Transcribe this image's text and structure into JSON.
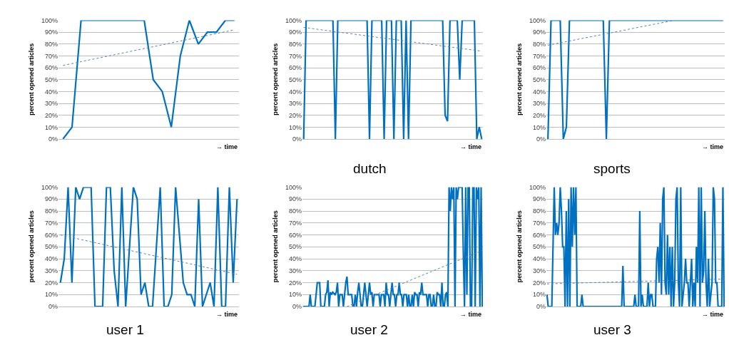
{
  "chart_data": [
    {
      "type": "line",
      "ylabel": "percent opened articles",
      "xlabel": "→ time",
      "ylim": [
        0,
        100
      ],
      "yticks": [
        {
          "value": 0,
          "label": "0%"
        },
        {
          "value": 10,
          "label": "10%"
        },
        {
          "value": 20,
          "label": "20%"
        },
        {
          "value": 30,
          "label": "30%"
        },
        {
          "value": 40,
          "label": "40%"
        },
        {
          "value": 50,
          "label": "50%"
        },
        {
          "value": 60,
          "label": "60%"
        },
        {
          "value": 70,
          "label": "70%"
        },
        {
          "value": 80,
          "label": "80%"
        },
        {
          "value": 90,
          "label": "90%"
        },
        {
          "value": 100,
          "label": "100%"
        }
      ],
      "grid": "y",
      "tick_labels": "y",
      "marker": "none",
      "line_style": "solid",
      "categories": [
        null,
        null,
        null,
        null,
        null,
        null,
        null,
        null,
        null,
        null,
        null,
        null,
        null,
        null,
        null,
        null,
        null,
        null,
        null,
        null
      ],
      "series": [
        {
          "color": "#0070c0",
          "values": [
            0,
            10,
            100,
            100,
            100,
            100,
            100,
            100,
            100,
            100,
            50,
            40,
            10,
            70,
            100,
            80,
            90,
            90,
            100,
            100
          ]
        },
        {
          "type": "line",
          "line_style": "dotted",
          "color": "#5b7fb5",
          "values": [
            62,
            null,
            null,
            null,
            null,
            null,
            null,
            null,
            null,
            null,
            null,
            null,
            null,
            null,
            null,
            null,
            null,
            null,
            null,
            92
          ]
        }
      ]
    },
    {
      "type": "line",
      "title": "dutch",
      "ylabel": "percent opened articles",
      "xlabel": "→ time",
      "ylim": [
        0,
        100
      ],
      "yticks": [
        {
          "value": 0,
          "label": "0%"
        },
        {
          "value": 10,
          "label": "10%"
        },
        {
          "value": 20,
          "label": "20%"
        },
        {
          "value": 30,
          "label": "30%"
        },
        {
          "value": 40,
          "label": "40%"
        },
        {
          "value": 50,
          "label": "50%"
        },
        {
          "value": 60,
          "label": "60%"
        },
        {
          "value": 70,
          "label": "70%"
        },
        {
          "value": 80,
          "label": "80%"
        },
        {
          "value": 90,
          "label": "90%"
        },
        {
          "value": 100,
          "label": "100%"
        }
      ],
      "grid": "y",
      "tick_labels": "y",
      "marker": "none",
      "line_style": "solid",
      "categories": [
        null,
        null,
        null,
        null,
        null,
        null,
        null,
        null,
        null,
        null,
        null,
        null,
        null,
        null,
        null,
        null,
        null,
        null,
        null,
        null,
        null,
        null,
        null,
        null,
        null,
        null,
        null,
        null,
        null,
        null,
        null,
        null,
        null,
        null,
        null,
        null,
        null,
        null,
        null,
        null,
        null,
        null,
        null,
        null,
        null,
        null,
        null,
        null,
        null,
        null,
        null,
        null,
        null,
        null,
        null,
        null,
        null,
        null,
        null,
        null,
        null,
        null,
        null,
        null,
        null,
        null,
        null,
        null,
        null,
        null,
        null,
        null,
        null,
        null
      ],
      "series": [
        {
          "color": "#0070c0",
          "values": [
            0,
            100,
            100,
            100,
            100,
            100,
            100,
            100,
            100,
            100,
            100,
            100,
            100,
            0,
            100,
            100,
            100,
            100,
            100,
            100,
            100,
            100,
            100,
            100,
            100,
            100,
            100,
            0,
            100,
            100,
            100,
            100,
            100,
            0,
            100,
            100,
            100,
            0,
            100,
            100,
            100,
            0,
            100,
            0,
            100,
            100,
            100,
            100,
            100,
            100,
            100,
            100,
            100,
            100,
            100,
            100,
            100,
            100,
            20,
            15,
            100,
            100,
            100,
            100,
            50,
            100,
            100,
            100,
            100,
            100,
            100,
            0,
            10,
            0
          ]
        },
        {
          "type": "line",
          "line_style": "dotted",
          "color": "#5b7fb5",
          "values": [
            94,
            null,
            null,
            null,
            null,
            null,
            null,
            null,
            null,
            null,
            null,
            null,
            null,
            null,
            null,
            null,
            null,
            null,
            null,
            null,
            null,
            null,
            null,
            null,
            null,
            null,
            null,
            null,
            null,
            null,
            null,
            null,
            null,
            null,
            null,
            null,
            null,
            null,
            null,
            null,
            null,
            null,
            null,
            null,
            null,
            null,
            null,
            null,
            null,
            null,
            null,
            null,
            null,
            null,
            null,
            null,
            null,
            null,
            null,
            null,
            null,
            null,
            null,
            null,
            null,
            null,
            null,
            null,
            null,
            null,
            null,
            null,
            null,
            74
          ]
        }
      ]
    },
    {
      "type": "line",
      "title": "sports",
      "ylabel": "percent opened articles",
      "xlabel": "→ time",
      "ylim": [
        0,
        100
      ],
      "yticks": [
        {
          "value": 0,
          "label": "0%"
        },
        {
          "value": 10,
          "label": "10%"
        },
        {
          "value": 20,
          "label": "20%"
        },
        {
          "value": 30,
          "label": "30%"
        },
        {
          "value": 40,
          "label": "40%"
        },
        {
          "value": 50,
          "label": "50%"
        },
        {
          "value": 60,
          "label": "60%"
        },
        {
          "value": 70,
          "label": "70%"
        },
        {
          "value": 80,
          "label": "80%"
        },
        {
          "value": 90,
          "label": "90%"
        },
        {
          "value": 100,
          "label": "100%"
        }
      ],
      "grid": "y",
      "tick_labels": "y",
      "marker": "none",
      "line_style": "solid",
      "categories": [
        null,
        null,
        null,
        null,
        null,
        null,
        null,
        null,
        null,
        null,
        null,
        null,
        null,
        null,
        null,
        null,
        null,
        null,
        null,
        null,
        null,
        null,
        null,
        null,
        null,
        null,
        null,
        null,
        null,
        null,
        null,
        null,
        null,
        null,
        null,
        null,
        null,
        null,
        null,
        null,
        null,
        null,
        null,
        null,
        null,
        null,
        null,
        null,
        null,
        null,
        null,
        null,
        null,
        null,
        null,
        null,
        null,
        null
      ],
      "series": [
        {
          "color": "#0070c0",
          "values": [
            0,
            100,
            100,
            100,
            100,
            0,
            10,
            100,
            100,
            100,
            100,
            100,
            100,
            100,
            100,
            100,
            100,
            100,
            100,
            0,
            100,
            100,
            100,
            100,
            100,
            100,
            100,
            100,
            100,
            100,
            100,
            100,
            100,
            100,
            100,
            100,
            100,
            100,
            100,
            100,
            100,
            100,
            100,
            100,
            100,
            100,
            100,
            100,
            100,
            100,
            100,
            100,
            100,
            100,
            100,
            100,
            100,
            100
          ]
        },
        {
          "type": "line",
          "line_style": "dotted",
          "color": "#5b7fb5",
          "values": [
            79,
            null,
            null,
            null,
            null,
            null,
            null,
            null,
            null,
            null,
            null,
            null,
            null,
            null,
            null,
            null,
            null,
            null,
            null,
            null,
            null,
            null,
            null,
            null,
            null,
            null,
            null,
            null,
            null,
            null,
            null,
            null,
            null,
            null,
            null,
            null,
            null,
            null,
            null,
            null,
            null,
            100,
            null,
            null,
            null,
            null,
            null,
            null,
            null,
            null,
            null,
            null,
            null,
            null,
            null,
            null,
            null,
            null
          ]
        }
      ]
    },
    {
      "type": "line",
      "title": "user 1",
      "ylabel": "percent opened articles",
      "xlabel": "→ time",
      "ylim": [
        0,
        100
      ],
      "yticks": [
        {
          "value": 0,
          "label": "0%"
        },
        {
          "value": 10,
          "label": "10%"
        },
        {
          "value": 20,
          "label": "20%"
        },
        {
          "value": 30,
          "label": "30%"
        },
        {
          "value": 40,
          "label": "40%"
        },
        {
          "value": 50,
          "label": "50%"
        },
        {
          "value": 60,
          "label": "60%"
        },
        {
          "value": 70,
          "label": "70%"
        },
        {
          "value": 80,
          "label": "80%"
        },
        {
          "value": 90,
          "label": "90%"
        },
        {
          "value": 100,
          "label": "100%"
        }
      ],
      "grid": "y",
      "tick_labels": "y",
      "marker": "none",
      "line_style": "solid",
      "categories": [
        null,
        null,
        null,
        null,
        null,
        null,
        null,
        null,
        null,
        null,
        null,
        null,
        null,
        null,
        null,
        null,
        null,
        null,
        null,
        null,
        null,
        null,
        null,
        null,
        null,
        null,
        null,
        null,
        null,
        null,
        null,
        null,
        null,
        null,
        null,
        null,
        null,
        null,
        null,
        null,
        null,
        null,
        null,
        null,
        null,
        null,
        null
      ],
      "series": [
        {
          "color": "#0070c0",
          "values": [
            20,
            40,
            100,
            20,
            100,
            90,
            100,
            100,
            100,
            0,
            0,
            0,
            100,
            100,
            30,
            0,
            100,
            0,
            50,
            100,
            90,
            10,
            20,
            0,
            0,
            50,
            100,
            0,
            0,
            10,
            100,
            60,
            20,
            10,
            10,
            0,
            90,
            0,
            10,
            20,
            0,
            100,
            0,
            0,
            100,
            20,
            90
          ]
        },
        {
          "type": "line",
          "line_style": "dotted",
          "color": "#5b7fb5",
          "values": [
            60,
            null,
            null,
            null,
            null,
            null,
            null,
            null,
            null,
            null,
            null,
            null,
            null,
            null,
            null,
            null,
            null,
            null,
            null,
            null,
            null,
            null,
            null,
            null,
            null,
            null,
            null,
            null,
            null,
            null,
            null,
            null,
            null,
            null,
            null,
            null,
            null,
            null,
            null,
            null,
            null,
            null,
            null,
            null,
            null,
            null,
            27
          ]
        }
      ]
    },
    {
      "type": "line",
      "title": "user 2",
      "ylabel": "percent opened articles",
      "xlabel": "→ time",
      "ylim": [
        0,
        100
      ],
      "yticks": [
        {
          "value": 0,
          "label": "0%"
        },
        {
          "value": 10,
          "label": "10%"
        },
        {
          "value": 20,
          "label": "20%"
        },
        {
          "value": 30,
          "label": "30%"
        },
        {
          "value": 40,
          "label": "40%"
        },
        {
          "value": 50,
          "label": "50%"
        },
        {
          "value": 60,
          "label": "60%"
        },
        {
          "value": 70,
          "label": "70%"
        },
        {
          "value": 80,
          "label": "80%"
        },
        {
          "value": 90,
          "label": "90%"
        },
        {
          "value": 100,
          "label": "100%"
        }
      ],
      "grid": "y",
      "tick_labels": "y",
      "marker": "none",
      "line_style": "solid",
      "categories": [
        null,
        null,
        null,
        null,
        null,
        null,
        null,
        null,
        null,
        null,
        null,
        null,
        null,
        null,
        null,
        null,
        null,
        null,
        null,
        null,
        null,
        null,
        null,
        null,
        null,
        null,
        null,
        null,
        null,
        null,
        null,
        null,
        null,
        null,
        null,
        null,
        null,
        null,
        null,
        null,
        null,
        null,
        null,
        null,
        null,
        null,
        null,
        null,
        null,
        null,
        null,
        null,
        null,
        null,
        null,
        null,
        null,
        null,
        null,
        null,
        null,
        null,
        null,
        null,
        null,
        null,
        null,
        null,
        null,
        null,
        null,
        null,
        null,
        null,
        null,
        null,
        null,
        null,
        null,
        null,
        null,
        null,
        null,
        null,
        null,
        null,
        null,
        null,
        null,
        null,
        null,
        null,
        null,
        null,
        null,
        null,
        null,
        null,
        null,
        null,
        null,
        null,
        null,
        null,
        null,
        null,
        null,
        null,
        null,
        null,
        null,
        null,
        null,
        null,
        null,
        null,
        null,
        null,
        null,
        null,
        null,
        null,
        null,
        null,
        null,
        null,
        null,
        null,
        null,
        null,
        null,
        null,
        null,
        null,
        null,
        null,
        null,
        null,
        null,
        null,
        null,
        null,
        null,
        null,
        null,
        null,
        null,
        null,
        null,
        null,
        null,
        null
      ],
      "series": [
        {
          "color": "#0070c0",
          "values": [
            0,
            0,
            0,
            0,
            0,
            0,
            10,
            0,
            0,
            0,
            0,
            10,
            20,
            20,
            20,
            0,
            0,
            0,
            0,
            10,
            12,
            22,
            0,
            12,
            10,
            12,
            11,
            10,
            12,
            20,
            0,
            10,
            10,
            10,
            0,
            10,
            20,
            25,
            10,
            10,
            10,
            10,
            0,
            0,
            10,
            0,
            12,
            20,
            10,
            0,
            0,
            10,
            20,
            10,
            0,
            10,
            20,
            10,
            12,
            0,
            10,
            10,
            10,
            10,
            10,
            0,
            10,
            10,
            10,
            0,
            20,
            10,
            10,
            0,
            10,
            20,
            10,
            10,
            0,
            10,
            10,
            20,
            10,
            10,
            0,
            10,
            10,
            10,
            0,
            10,
            0,
            0,
            10,
            0,
            12,
            10,
            10,
            0,
            12,
            10,
            20,
            10,
            10,
            10,
            10,
            0,
            10,
            10,
            0,
            0,
            10,
            0,
            0,
            12,
            10,
            10,
            0,
            20,
            0,
            0,
            10,
            12,
            0,
            100,
            80,
            100,
            90,
            100,
            0,
            100,
            90,
            100,
            100,
            100,
            100,
            45,
            0,
            100,
            10,
            100,
            100,
            0,
            0,
            100,
            100,
            0,
            100,
            90,
            100,
            0,
            100,
            0
          ]
        },
        {
          "type": "line",
          "line_style": "dotted",
          "color": "#5b7fb5",
          "values": [
            null,
            null,
            null,
            null,
            null,
            null,
            null,
            null,
            null,
            null,
            null,
            null,
            null,
            null,
            null,
            null,
            null,
            null,
            null,
            null,
            null,
            null,
            null,
            null,
            null,
            null,
            null,
            null,
            null,
            null,
            null,
            null,
            null,
            null,
            null,
            null,
            null,
            0,
            null,
            null,
            null,
            null,
            null,
            null,
            null,
            null,
            null,
            null,
            null,
            null,
            null,
            null,
            null,
            null,
            null,
            null,
            null,
            null,
            null,
            null,
            null,
            null,
            null,
            null,
            null,
            null,
            null,
            null,
            null,
            null,
            null,
            null,
            null,
            null,
            null,
            null,
            null,
            null,
            null,
            null,
            null,
            null,
            null,
            null,
            null,
            null,
            null,
            null,
            null,
            null,
            null,
            null,
            null,
            null,
            null,
            null,
            null,
            null,
            null,
            null,
            null,
            null,
            null,
            null,
            null,
            null,
            null,
            null,
            null,
            null,
            null,
            null,
            null,
            null,
            null,
            null,
            null,
            null,
            null,
            null,
            null,
            null,
            null,
            null,
            null,
            null,
            null,
            null,
            null,
            null,
            null,
            null,
            null,
            null,
            null,
            null,
            null,
            null,
            null,
            null,
            null,
            null,
            null,
            null,
            null,
            null,
            null,
            null,
            null,
            null,
            null,
            47
          ]
        }
      ]
    },
    {
      "type": "line",
      "title": "user 3",
      "ylabel": "percent opened articles",
      "xlabel": "→ time",
      "ylim": [
        0,
        100
      ],
      "yticks": [
        {
          "value": 0,
          "label": "0%"
        },
        {
          "value": 10,
          "label": "10%"
        },
        {
          "value": 20,
          "label": "20%"
        },
        {
          "value": 30,
          "label": "30%"
        },
        {
          "value": 40,
          "label": "40%"
        },
        {
          "value": 50,
          "label": "50%"
        },
        {
          "value": 60,
          "label": "60%"
        },
        {
          "value": 70,
          "label": "70%"
        },
        {
          "value": 80,
          "label": "80%"
        },
        {
          "value": 90,
          "label": "90%"
        },
        {
          "value": 100,
          "label": "100%"
        }
      ],
      "grid": "y",
      "tick_labels": "y",
      "marker": "none",
      "line_style": "solid",
      "categories": [
        null,
        null,
        null,
        null,
        null,
        null,
        null,
        null,
        null,
        null,
        null,
        null,
        null,
        null,
        null,
        null,
        null,
        null,
        null,
        null,
        null,
        null,
        null,
        null,
        null,
        null,
        null,
        null,
        null,
        null,
        null,
        null,
        null,
        null,
        null,
        null,
        null,
        null,
        null,
        null,
        null,
        null,
        null,
        null,
        null,
        null,
        null,
        null,
        null,
        null,
        null,
        null,
        null,
        null,
        null,
        null,
        null,
        null,
        null,
        null,
        null,
        null,
        null,
        null,
        null,
        null,
        null,
        null,
        null,
        null,
        null,
        null,
        null,
        null,
        null,
        null,
        null,
        null,
        null,
        null,
        null,
        null,
        null,
        null,
        null,
        null,
        null,
        null,
        null,
        null,
        null,
        null,
        null,
        null,
        null,
        null,
        null,
        null,
        null,
        null,
        null,
        null,
        null,
        null,
        null,
        null,
        null,
        null,
        null,
        null,
        null,
        null,
        null,
        null,
        null,
        null,
        null,
        null,
        null,
        null,
        null,
        null,
        null,
        null,
        null,
        null,
        null,
        null,
        null,
        null,
        null,
        null,
        null,
        null,
        null,
        null,
        null,
        null,
        null,
        null,
        null,
        null,
        null,
        null,
        null,
        null,
        null,
        null
      ],
      "series": [
        {
          "color": "#0070c0",
          "values": [
            10,
            0,
            0,
            0,
            0,
            50,
            100,
            60,
            70,
            60,
            70,
            100,
            80,
            50,
            50,
            0,
            80,
            0,
            90,
            0,
            100,
            50,
            100,
            60,
            100,
            0,
            0,
            0,
            0,
            10,
            0,
            0,
            0,
            0,
            0,
            0,
            0,
            0,
            0,
            0,
            0,
            0,
            0,
            0,
            0,
            0,
            0,
            0,
            0,
            0,
            0,
            0,
            0,
            0,
            0,
            0,
            0,
            0,
            0,
            0,
            0,
            0,
            0,
            34,
            0,
            0,
            0,
            0,
            0,
            0,
            0,
            0,
            0,
            10,
            0,
            0,
            0,
            80,
            0,
            10,
            0,
            0,
            0,
            0,
            20,
            0,
            10,
            10,
            0,
            0,
            0,
            40,
            50,
            20,
            70,
            10,
            90,
            100,
            20,
            10,
            60,
            10,
            50,
            0,
            50,
            0,
            20,
            90,
            100,
            20,
            0,
            100,
            0,
            10,
            20,
            40,
            20,
            20,
            0,
            20,
            40,
            0,
            20,
            0,
            50,
            20,
            100,
            0,
            100,
            20,
            30,
            80,
            20,
            0,
            40,
            0,
            10,
            20,
            100,
            90,
            20,
            20,
            0,
            0,
            0,
            0,
            100,
            0
          ]
        },
        {
          "type": "line",
          "line_style": "dotted",
          "color": "#5b7fb5",
          "values": [
            19,
            null,
            null,
            null,
            null,
            null,
            null,
            null,
            null,
            null,
            null,
            null,
            null,
            null,
            null,
            null,
            null,
            null,
            null,
            null,
            null,
            null,
            null,
            null,
            null,
            null,
            null,
            null,
            null,
            null,
            null,
            null,
            null,
            null,
            null,
            null,
            null,
            null,
            null,
            null,
            null,
            null,
            null,
            null,
            null,
            null,
            null,
            null,
            null,
            null,
            null,
            null,
            null,
            null,
            null,
            null,
            null,
            null,
            null,
            null,
            null,
            null,
            null,
            null,
            null,
            null,
            null,
            null,
            null,
            null,
            null,
            null,
            null,
            null,
            null,
            null,
            null,
            null,
            null,
            null,
            null,
            null,
            null,
            null,
            null,
            null,
            null,
            null,
            null,
            null,
            null,
            null,
            null,
            null,
            null,
            null,
            null,
            null,
            null,
            null,
            null,
            null,
            null,
            null,
            null,
            null,
            null,
            null,
            null,
            null,
            null,
            null,
            null,
            null,
            null,
            null,
            null,
            null,
            null,
            null,
            null,
            null,
            null,
            null,
            null,
            null,
            null,
            null,
            null,
            null,
            null,
            null,
            null,
            null,
            null,
            null,
            null,
            null,
            null,
            null,
            null,
            null,
            null,
            null,
            null,
            null,
            null,
            23
          ]
        }
      ]
    }
  ]
}
